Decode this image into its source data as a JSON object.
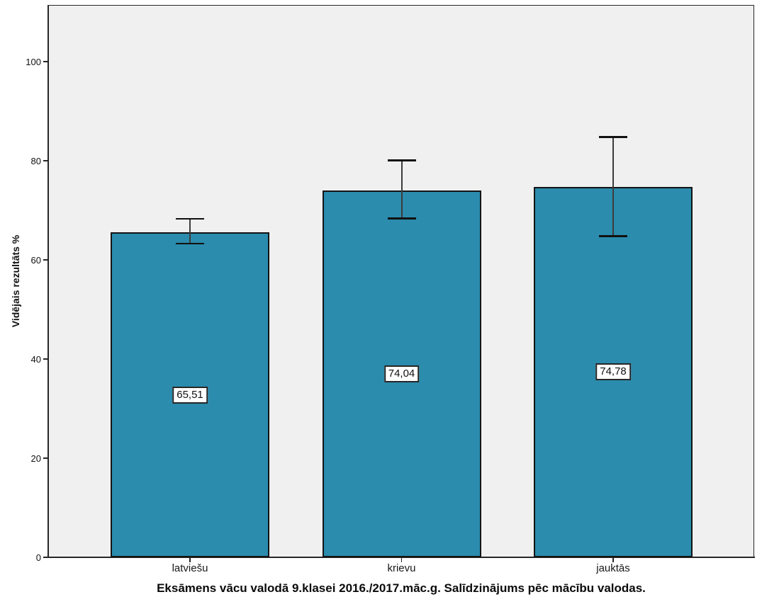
{
  "figure": {
    "title": "Eksāmens vācu valodā 9.klasei 2016./2017.māc.g. Salīdzinājums pēc mācību valodas.",
    "y_axis_title": "Vidējais rezultāts %"
  },
  "chart_data": {
    "type": "bar",
    "categories": [
      "latviešu",
      "krievu",
      "jauktās"
    ],
    "values": [
      65.51,
      74.04,
      74.78
    ],
    "value_labels": [
      "65,51",
      "74,04",
      "74,78"
    ],
    "error_bars": {
      "low": [
        63.3,
        68.4,
        64.8
      ],
      "high": [
        68.3,
        80.1,
        84.8
      ]
    },
    "title": "Eksāmens vācu valodā 9.klasei 2016./2017.māc.g. Salīdzinājums pēc mācību valodas.",
    "xlabel": "",
    "ylabel": "Vidējais rezultāts %",
    "yticks": [
      0,
      20,
      40,
      60,
      80,
      100
    ],
    "ylim": [
      0,
      111
    ],
    "grid": false,
    "legend": false,
    "bar_color": "#2B8CAD",
    "bar_border_color": "#141414",
    "error_bar_color": "#3C3C3C",
    "error_cap_color": "#111111",
    "plot_bg_color": "#F0F0F0",
    "axis_color": "#262626"
  }
}
